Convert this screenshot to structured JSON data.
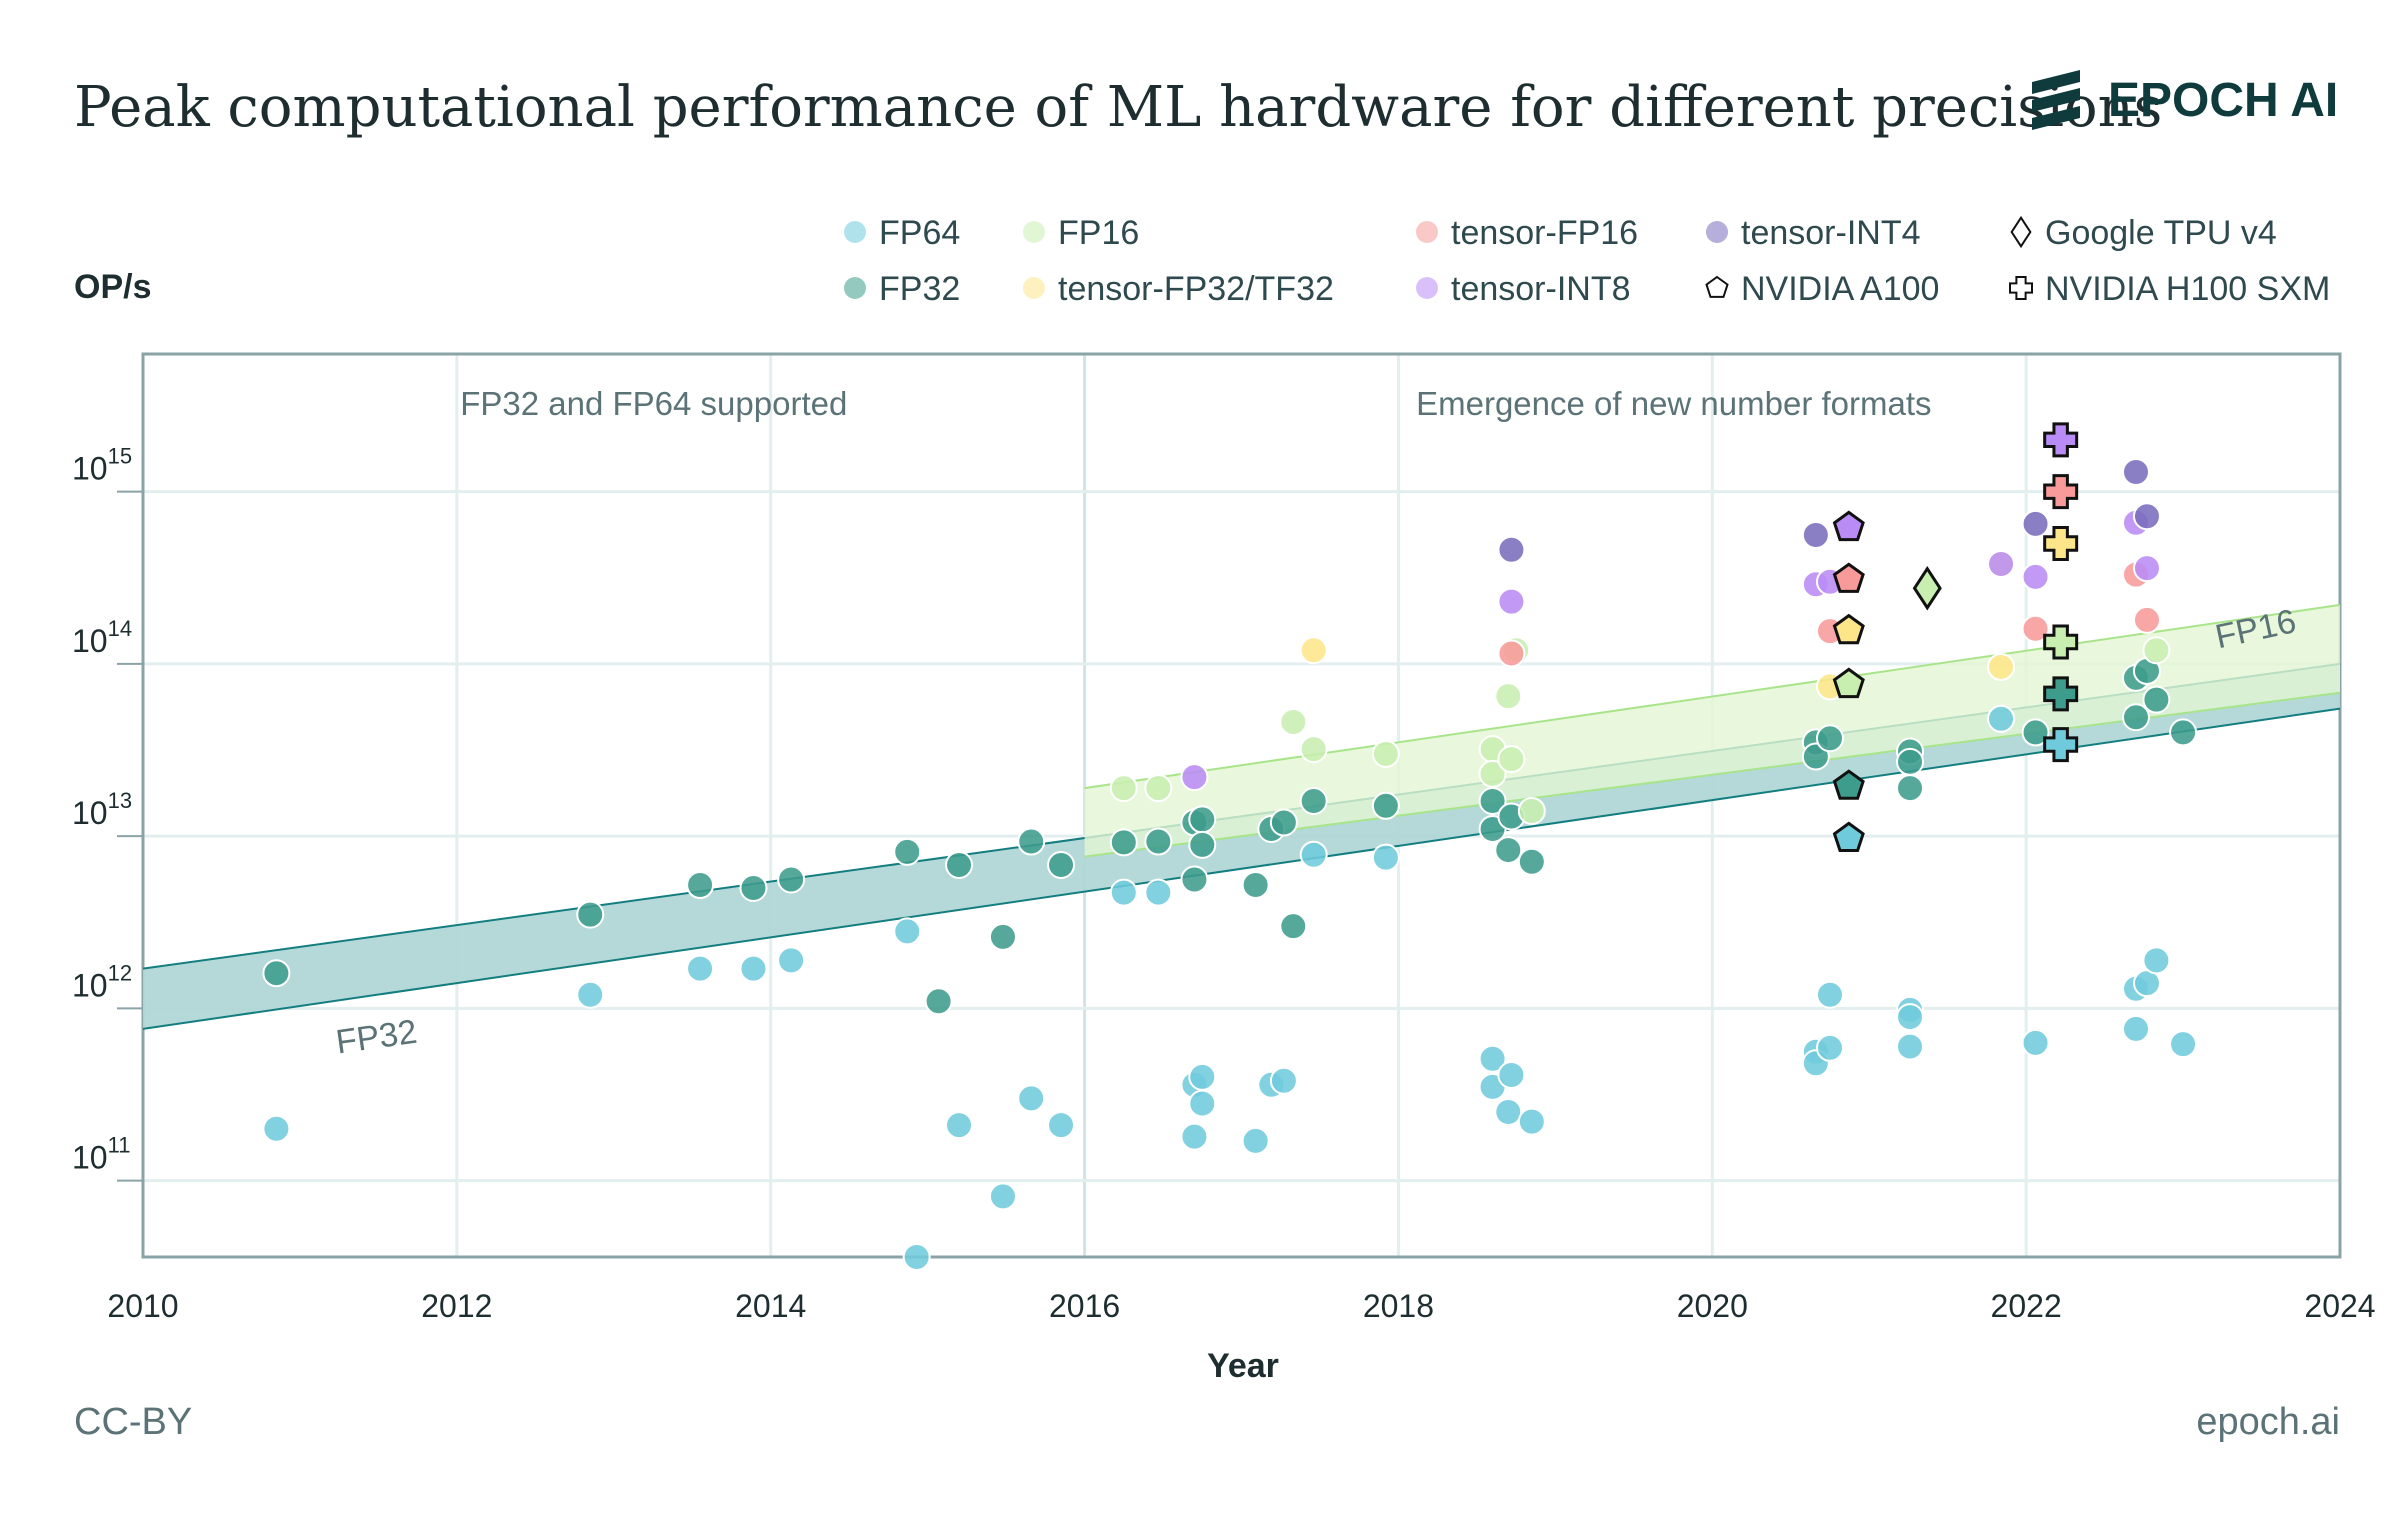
{
  "header": {
    "title": "Peak computational performance of ML hardware for different precisions",
    "logo_text": "EPOCH AI"
  },
  "footer": {
    "license": "CC-BY",
    "site": "epoch.ai"
  },
  "colors": {
    "FP64": "#6fcbdc",
    "FP32": "#3d9c8c",
    "FP16": "#c8eeb0",
    "tensor-FP32/TF32": "#fde68a",
    "tensor-FP16": "#f89a9a",
    "tensor-INT8": "#b98cf5",
    "tensor-INT4": "#7a6cbd",
    "text": "#2f4a4f",
    "fp32_band": "#137e80",
    "fp16_band": "#a8e58a"
  },
  "chart_data": {
    "type": "scatter",
    "title": "Peak computational performance of ML hardware for different precisions",
    "xlabel": "Year",
    "ylabel": "OP/s",
    "xlim": [
      2010,
      2024
    ],
    "ylim": [
      36000000000.0,
      6300000000000000.0
    ],
    "yscale": "log",
    "grid": true,
    "legend_placement": "top",
    "x_ticks": [
      "2010",
      "2012",
      "2014",
      "2016",
      "2018",
      "2020",
      "2022",
      "2024"
    ],
    "y_ticks": [
      {
        "base": "10",
        "exp": "11",
        "value": 100000000000.0
      },
      {
        "base": "10",
        "exp": "12",
        "value": 1000000000000.0
      },
      {
        "base": "10",
        "exp": "13",
        "value": 10000000000000.0
      },
      {
        "base": "10",
        "exp": "14",
        "value": 100000000000000.0
      },
      {
        "base": "10",
        "exp": "15",
        "value": 1000000000000000.0
      }
    ],
    "annotations": [
      {
        "text": "FP32 and FP64 supported",
        "x": 2013
      },
      {
        "text": "Emergence of new number formats",
        "x": 2019.5
      }
    ],
    "legend": [
      {
        "label": "FP64",
        "marker": "circle",
        "series": "FP64"
      },
      {
        "label": "FP32",
        "marker": "circle",
        "series": "FP32"
      },
      {
        "label": "FP16",
        "marker": "circle",
        "series": "FP16"
      },
      {
        "label": "tensor-FP32/TF32",
        "marker": "circle",
        "series": "tensor-FP32/TF32"
      },
      {
        "label": "tensor-FP16",
        "marker": "circle",
        "series": "tensor-FP16"
      },
      {
        "label": "tensor-INT8",
        "marker": "circle",
        "series": "tensor-INT8"
      },
      {
        "label": "tensor-INT4",
        "marker": "circle",
        "series": "tensor-INT4"
      },
      {
        "label": "NVIDIA A100",
        "marker": "pentagon"
      },
      {
        "label": "Google TPU v4",
        "marker": "diamond"
      },
      {
        "label": "NVIDIA H100 SXM",
        "marker": "plus"
      }
    ],
    "trend_bands": [
      {
        "name": "FP32",
        "x": [
          2010,
          2024
        ],
        "upper": [
          1700000000000.0,
          100000000000000.0
        ],
        "lower": [
          760000000000.0,
          55000000000000.0
        ]
      },
      {
        "name": "FP16",
        "x": [
          2016,
          2024
        ],
        "upper": [
          19000000000000.0,
          220000000000000.0
        ],
        "lower": [
          7600000000000.0,
          68000000000000.0
        ]
      }
    ],
    "series": [
      {
        "name": "FP64",
        "points": [
          [
            2010.85,
            200000000000.0
          ],
          [
            2012.85,
            1200000000000.0
          ],
          [
            2013.55,
            1700000000000.0
          ],
          [
            2013.89,
            1700000000000.0
          ],
          [
            2014.13,
            1900000000000.0
          ],
          [
            2014.87,
            2800000000000.0
          ],
          [
            2014.93,
            36000000000.0
          ],
          [
            2015.2,
            210000000000.0
          ],
          [
            2015.48,
            81000000000.0
          ],
          [
            2015.66,
            300000000000.0
          ],
          [
            2015.85,
            210000000000.0
          ],
          [
            2016.25,
            4700000000000.0
          ],
          [
            2016.47,
            4700000000000.0
          ],
          [
            2016.7,
            360000000000.0
          ],
          [
            2016.75,
            400000000000.0
          ],
          [
            2016.75,
            280000000000.0
          ],
          [
            2016.7,
            180000000000.0
          ],
          [
            2017.09,
            170000000000.0
          ],
          [
            2017.19,
            360000000000.0
          ],
          [
            2017.27,
            380000000000.0
          ],
          [
            2017.46,
            7800000000000.0
          ],
          [
            2017.92,
            7500000000000.0
          ],
          [
            2018.6,
            510000000000.0
          ],
          [
            2018.6,
            350000000000.0
          ],
          [
            2018.72,
            410000000000.0
          ],
          [
            2018.7,
            250000000000.0
          ],
          [
            2018.85,
            220000000000.0
          ],
          [
            2020.66,
            560000000000.0
          ],
          [
            2020.66,
            480000000000.0
          ],
          [
            2020.75,
            590000000000.0
          ],
          [
            2020.75,
            1200000000000.0
          ],
          [
            2021.26,
            980000000000.0
          ],
          [
            2021.26,
            890000000000.0
          ],
          [
            2021.26,
            600000000000.0
          ],
          [
            2021.84,
            48000000000000.0
          ],
          [
            2022.06,
            630000000000.0
          ],
          [
            2022.7,
            1300000000000.0
          ],
          [
            2022.77,
            1400000000000.0
          ],
          [
            2022.83,
            1900000000000.0
          ],
          [
            2022.7,
            760000000000.0
          ],
          [
            2023.0,
            620000000000.0
          ]
        ]
      },
      {
        "name": "FP32",
        "points": [
          [
            2010.85,
            1600000000000.0
          ],
          [
            2012.85,
            3500000000000.0
          ],
          [
            2013.55,
            5200000000000.0
          ],
          [
            2013.89,
            5000000000000.0
          ],
          [
            2014.13,
            5600000000000.0
          ],
          [
            2014.87,
            8100000000000.0
          ],
          [
            2015.07,
            1100000000000.0
          ],
          [
            2015.2,
            6800000000000.0
          ],
          [
            2015.48,
            2600000000000.0
          ],
          [
            2015.66,
            9300000000000.0
          ],
          [
            2015.85,
            6800000000000.0
          ],
          [
            2016.25,
            9200000000000.0
          ],
          [
            2016.47,
            9300000000000.0
          ],
          [
            2016.7,
            5600000000000.0
          ],
          [
            2016.7,
            12000000000000.0
          ],
          [
            2016.75,
            12500000000000.0
          ],
          [
            2016.75,
            8900000000000.0
          ],
          [
            2017.09,
            5200000000000.0
          ],
          [
            2017.19,
            11000000000000.0
          ],
          [
            2017.27,
            12000000000000.0
          ],
          [
            2017.33,
            3000000000000.0
          ],
          [
            2017.46,
            16000000000000.0
          ],
          [
            2017.92,
            15000000000000.0
          ],
          [
            2018.6,
            16000000000000.0
          ],
          [
            2018.6,
            11000000000000.0
          ],
          [
            2018.7,
            8300000000000.0
          ],
          [
            2018.72,
            13000000000000.0
          ],
          [
            2018.85,
            7100000000000.0
          ],
          [
            2020.66,
            35000000000000.0
          ],
          [
            2020.66,
            29000000000000.0
          ],
          [
            2020.75,
            37000000000000.0
          ],
          [
            2021.26,
            31000000000000.0
          ],
          [
            2021.26,
            27000000000000.0
          ],
          [
            2021.26,
            19000000000000.0
          ],
          [
            2022.06,
            40000000000000.0
          ],
          [
            2022.7,
            83000000000000.0
          ],
          [
            2022.77,
            91000000000000.0
          ],
          [
            2022.7,
            49000000000000.0
          ],
          [
            2022.83,
            62000000000000.0
          ],
          [
            2023.0,
            40000000000000.0
          ]
        ]
      },
      {
        "name": "FP16",
        "points": [
          [
            2016.25,
            19000000000000.0
          ],
          [
            2016.47,
            19000000000000.0
          ],
          [
            2017.33,
            46000000000000.0
          ],
          [
            2017.46,
            32000000000000.0
          ],
          [
            2017.92,
            30000000000000.0
          ],
          [
            2018.6,
            32000000000000.0
          ],
          [
            2018.6,
            23000000000000.0
          ],
          [
            2018.7,
            65000000000000.0
          ],
          [
            2018.72,
            28000000000000.0
          ],
          [
            2018.75,
            120000000000000.0
          ],
          [
            2018.85,
            14000000000000.0
          ],
          [
            2022.83,
            120000000000000.0
          ]
        ]
      },
      {
        "name": "tensor-FP32/TF32",
        "points": [
          [
            2017.46,
            120000000000000.0
          ],
          [
            2020.75,
            74000000000000.0
          ],
          [
            2021.84,
            96000000000000.0
          ],
          [
            2021.84,
            380000000000000.0
          ]
        ]
      },
      {
        "name": "tensor-FP16",
        "points": [
          [
            2018.72,
            115000000000000.0
          ],
          [
            2020.75,
            155000000000000.0
          ],
          [
            2022.06,
            160000000000000.0
          ],
          [
            2022.7,
            330000000000000.0
          ],
          [
            2022.77,
            180000000000000.0
          ]
        ]
      },
      {
        "name": "tensor-INT8",
        "points": [
          [
            2016.7,
            22000000000000.0
          ],
          [
            2018.72,
            230000000000000.0
          ],
          [
            2020.66,
            290000000000000.0
          ],
          [
            2020.75,
            300000000000000.0
          ],
          [
            2022.06,
            320000000000000.0
          ],
          [
            2022.7,
            660000000000000.0
          ],
          [
            2022.77,
            360000000000000.0
          ],
          [
            2021.84,
            380000000000000.0
          ]
        ]
      },
      {
        "name": "tensor-INT4",
        "points": [
          [
            2018.72,
            460000000000000.0
          ],
          [
            2020.66,
            560000000000000.0
          ],
          [
            2022.06,
            650000000000000.0
          ],
          [
            2022.7,
            1300000000000000.0
          ],
          [
            2022.77,
            720000000000000.0
          ]
        ]
      }
    ],
    "highlighted_hardware": [
      {
        "name": "NVIDIA A100",
        "marker": "pentagon",
        "x": 2020.87,
        "values": {
          "tensor-INT8": 620000000000000.0,
          "tensor-FP16": 310000000000000.0,
          "tensor-FP32/TF32": 156000000000000.0,
          "FP16": 76000000000000.0,
          "FP32": 19500000000000.0,
          "FP64": 9700000000000.0
        }
      },
      {
        "name": "Google TPU v4",
        "marker": "diamond",
        "x": 2021.37,
        "values": {
          "FP16": 275000000000000.0
        }
      },
      {
        "name": "NVIDIA H100 SXM",
        "marker": "plus",
        "x": 2022.22,
        "values": {
          "tensor-INT8": 2000000000000000.0,
          "tensor-FP16": 1000000000000000.0,
          "tensor-FP32/TF32": 500000000000000.0,
          "FP16": 134000000000000.0,
          "FP32": 67000000000000.0,
          "FP64": 34000000000000.0
        }
      }
    ]
  }
}
